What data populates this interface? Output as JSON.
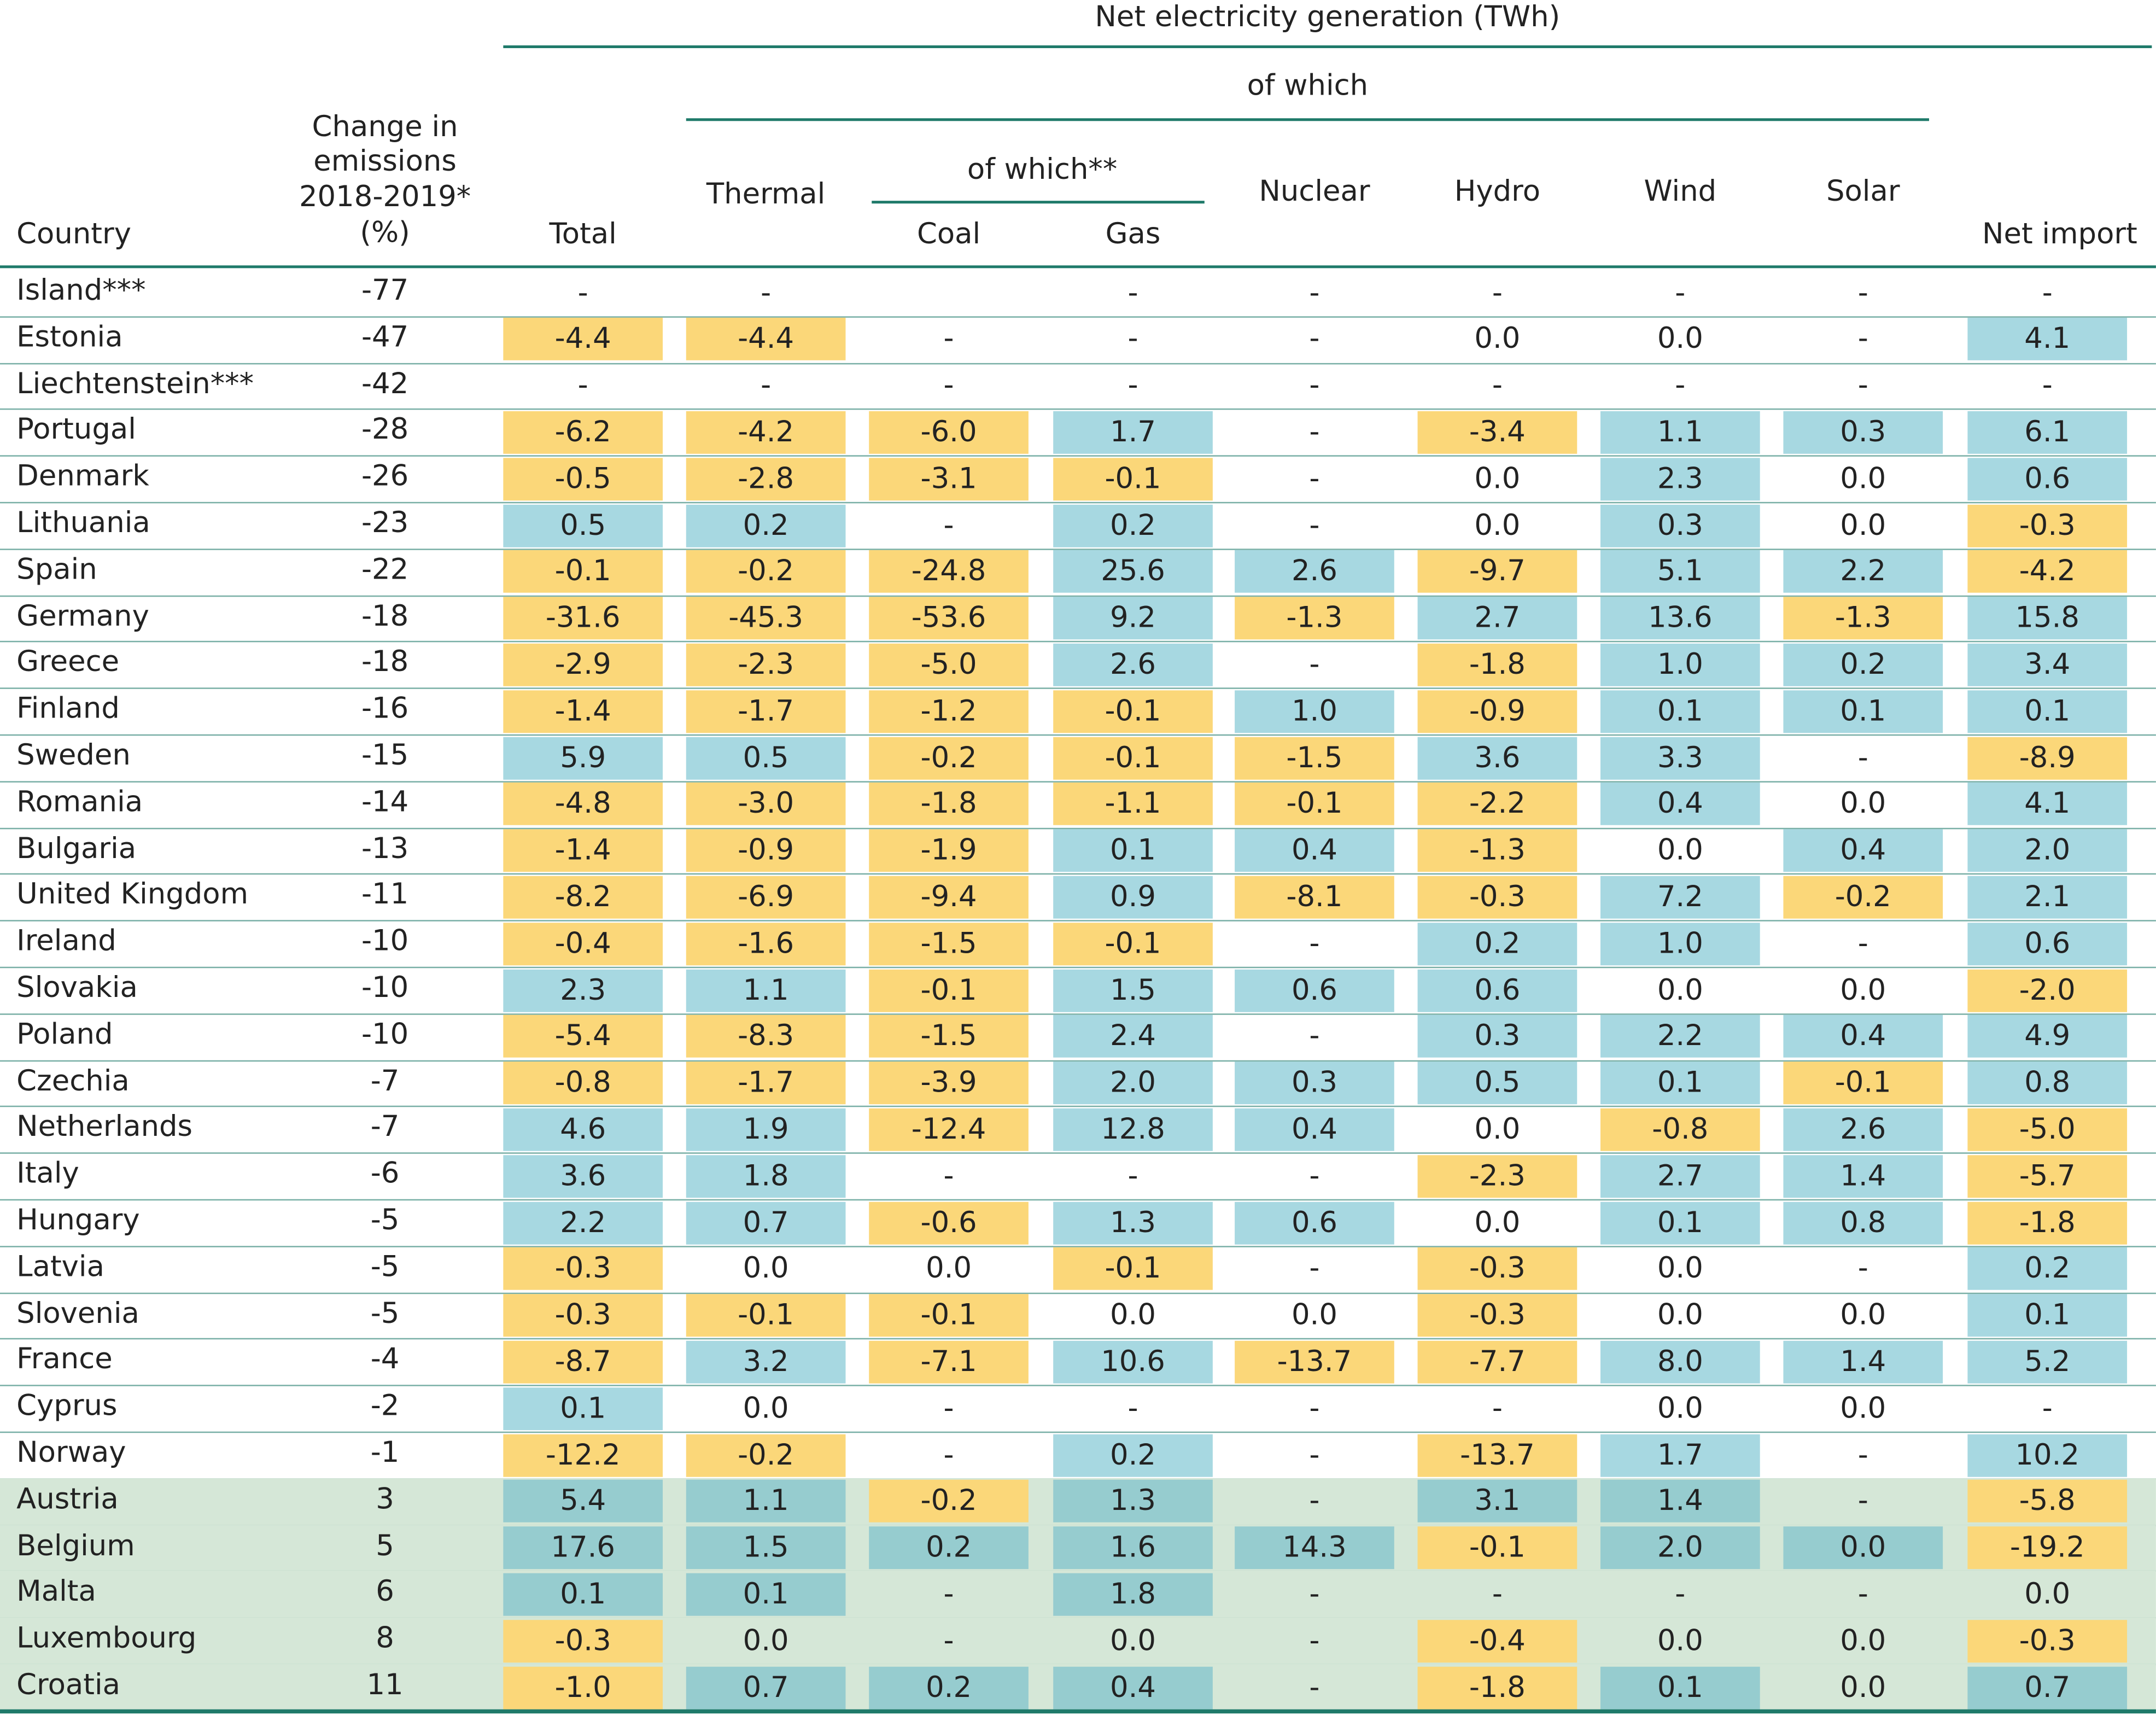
{
  "header": {
    "top": "Net electricity generation (TWh)",
    "of_which": "of which",
    "of_which_2": "of which**",
    "country": "Country",
    "change_line1": "Change in",
    "change_line2": "emissions",
    "change_line3": "2018-2019*",
    "change_line4": "(%)",
    "total": "Total",
    "thermal": "Thermal",
    "coal": "Coal",
    "gas": "Gas",
    "nuclear": "Nuclear",
    "hydro": "Hydro",
    "wind": "Wind",
    "solar": "Solar",
    "net_import": "Net import"
  },
  "colors": {
    "positive": "#a7d8e1",
    "negative": "#fbd779",
    "increase_row": "#d5e7d7",
    "positive_on_increase": "#96cccf",
    "rule": "#1f7a6a"
  },
  "chart_data": {
    "type": "table",
    "columns": [
      "Country",
      "Change in emissions 2018-2019* (%)",
      "Total",
      "Thermal",
      "Coal",
      "Gas",
      "Nuclear",
      "Hydro",
      "Wind",
      "Solar",
      "Net import"
    ],
    "rows": [
      {
        "country": "Island***",
        "change": "-77",
        "values": [
          "-",
          "-",
          "",
          "-",
          "-",
          "-",
          "-",
          "-",
          "-"
        ],
        "fill": [
          "",
          "",
          "",
          "",
          "",
          "",
          "",
          "",
          ""
        ],
        "increase": false
      },
      {
        "country": "Estonia",
        "change": "-47",
        "values": [
          "-4.4",
          "-4.4",
          "-",
          "-",
          "-",
          "0.0",
          "0.0",
          "-",
          "4.1"
        ],
        "fill": [
          "neg",
          "neg",
          "",
          "",
          "",
          "",
          "",
          "",
          "pos"
        ],
        "increase": false
      },
      {
        "country": "Liechtenstein***",
        "change": "-42",
        "values": [
          "-",
          "-",
          "-",
          "-",
          "-",
          "-",
          "-",
          "-",
          "-"
        ],
        "fill": [
          "",
          "",
          "",
          "",
          "",
          "",
          "",
          "",
          ""
        ],
        "increase": false
      },
      {
        "country": "Portugal",
        "change": "-28",
        "values": [
          "-6.2",
          "-4.2",
          "-6.0",
          "1.7",
          "-",
          "-3.4",
          "1.1",
          "0.3",
          "6.1"
        ],
        "fill": [
          "neg",
          "neg",
          "neg",
          "pos",
          "",
          "neg",
          "pos",
          "pos",
          "pos"
        ],
        "increase": false
      },
      {
        "country": "Denmark",
        "change": "-26",
        "values": [
          "-0.5",
          "-2.8",
          "-3.1",
          "-0.1",
          "-",
          "0.0",
          "2.3",
          "0.0",
          "0.6"
        ],
        "fill": [
          "neg",
          "neg",
          "neg",
          "neg",
          "",
          "",
          "pos",
          "",
          "pos"
        ],
        "increase": false
      },
      {
        "country": "Lithuania",
        "change": "-23",
        "values": [
          "0.5",
          "0.2",
          "-",
          "0.2",
          "-",
          "0.0",
          "0.3",
          "0.0",
          "-0.3"
        ],
        "fill": [
          "pos",
          "pos",
          "",
          "pos",
          "",
          "",
          "pos",
          "",
          "neg"
        ],
        "increase": false
      },
      {
        "country": "Spain",
        "change": "-22",
        "values": [
          "-0.1",
          "-0.2",
          "-24.8",
          "25.6",
          "2.6",
          "-9.7",
          "5.1",
          "2.2",
          "-4.2"
        ],
        "fill": [
          "neg",
          "neg",
          "neg",
          "pos",
          "pos",
          "neg",
          "pos",
          "pos",
          "neg"
        ],
        "increase": false
      },
      {
        "country": "Germany",
        "change": "-18",
        "values": [
          "-31.6",
          "-45.3",
          "-53.6",
          "9.2",
          "-1.3",
          "2.7",
          "13.6",
          "-1.3",
          "15.8"
        ],
        "fill": [
          "neg",
          "neg",
          "neg",
          "pos",
          "neg",
          "pos",
          "pos",
          "neg",
          "pos"
        ],
        "increase": false
      },
      {
        "country": "Greece",
        "change": "-18",
        "values": [
          "-2.9",
          "-2.3",
          "-5.0",
          "2.6",
          "-",
          "-1.8",
          "1.0",
          "0.2",
          "3.4"
        ],
        "fill": [
          "neg",
          "neg",
          "neg",
          "pos",
          "",
          "neg",
          "pos",
          "pos",
          "pos"
        ],
        "increase": false
      },
      {
        "country": "Finland",
        "change": "-16",
        "values": [
          "-1.4",
          "-1.7",
          "-1.2",
          "-0.1",
          "1.0",
          "-0.9",
          "0.1",
          "0.1",
          "0.1"
        ],
        "fill": [
          "neg",
          "neg",
          "neg",
          "neg",
          "pos",
          "neg",
          "pos",
          "pos",
          "pos"
        ],
        "increase": false
      },
      {
        "country": "Sweden",
        "change": "-15",
        "values": [
          "5.9",
          "0.5",
          "-0.2",
          "-0.1",
          "-1.5",
          "3.6",
          "3.3",
          "-",
          "-8.9"
        ],
        "fill": [
          "pos",
          "pos",
          "neg",
          "neg",
          "neg",
          "pos",
          "pos",
          "",
          "neg"
        ],
        "increase": false
      },
      {
        "country": "Romania",
        "change": "-14",
        "values": [
          "-4.8",
          "-3.0",
          "-1.8",
          "-1.1",
          "-0.1",
          "-2.2",
          "0.4",
          "0.0",
          "4.1"
        ],
        "fill": [
          "neg",
          "neg",
          "neg",
          "neg",
          "neg",
          "neg",
          "pos",
          "",
          "pos"
        ],
        "increase": false
      },
      {
        "country": "Bulgaria",
        "change": "-13",
        "values": [
          "-1.4",
          "-0.9",
          "-1.9",
          "0.1",
          "0.4",
          "-1.3",
          "0.0",
          "0.4",
          "2.0"
        ],
        "fill": [
          "neg",
          "neg",
          "neg",
          "pos",
          "pos",
          "neg",
          "",
          "pos",
          "pos"
        ],
        "increase": false
      },
      {
        "country": "United Kingdom",
        "change": "-11",
        "values": [
          "-8.2",
          "-6.9",
          "-9.4",
          "0.9",
          "-8.1",
          "-0.3",
          "7.2",
          "-0.2",
          "2.1"
        ],
        "fill": [
          "neg",
          "neg",
          "neg",
          "pos",
          "neg",
          "neg",
          "pos",
          "neg",
          "pos"
        ],
        "increase": false
      },
      {
        "country": "Ireland",
        "change": "-10",
        "values": [
          "-0.4",
          "-1.6",
          "-1.5",
          "-0.1",
          "-",
          "0.2",
          "1.0",
          "-",
          "0.6"
        ],
        "fill": [
          "neg",
          "neg",
          "neg",
          "neg",
          "",
          "pos",
          "pos",
          "",
          "pos"
        ],
        "increase": false
      },
      {
        "country": "Slovakia",
        "change": "-10",
        "values": [
          "2.3",
          "1.1",
          "-0.1",
          "1.5",
          "0.6",
          "0.6",
          "0.0",
          "0.0",
          "-2.0"
        ],
        "fill": [
          "pos",
          "pos",
          "neg",
          "pos",
          "pos",
          "pos",
          "",
          "",
          "neg"
        ],
        "increase": false
      },
      {
        "country": "Poland",
        "change": "-10",
        "values": [
          "-5.4",
          "-8.3",
          "-1.5",
          "2.4",
          "-",
          "0.3",
          "2.2",
          "0.4",
          "4.9"
        ],
        "fill": [
          "neg",
          "neg",
          "neg",
          "pos",
          "",
          "pos",
          "pos",
          "pos",
          "pos"
        ],
        "increase": false
      },
      {
        "country": "Czechia",
        "change": "-7",
        "values": [
          "-0.8",
          "-1.7",
          "-3.9",
          "2.0",
          "0.3",
          "0.5",
          "0.1",
          "-0.1",
          "0.8"
        ],
        "fill": [
          "neg",
          "neg",
          "neg",
          "pos",
          "pos",
          "pos",
          "pos",
          "neg",
          "pos"
        ],
        "increase": false
      },
      {
        "country": "Netherlands",
        "change": "-7",
        "values": [
          "4.6",
          "1.9",
          "-12.4",
          "12.8",
          "0.4",
          "0.0",
          "-0.8",
          "2.6",
          "-5.0"
        ],
        "fill": [
          "pos",
          "pos",
          "neg",
          "pos",
          "pos",
          "",
          "neg",
          "pos",
          "neg"
        ],
        "increase": false
      },
      {
        "country": "Italy",
        "change": "-6",
        "values": [
          "3.6",
          "1.8",
          "-",
          "-",
          "-",
          "-2.3",
          "2.7",
          "1.4",
          "-5.7"
        ],
        "fill": [
          "pos",
          "pos",
          "",
          "",
          "",
          "neg",
          "pos",
          "pos",
          "neg"
        ],
        "increase": false
      },
      {
        "country": "Hungary",
        "change": "-5",
        "values": [
          "2.2",
          "0.7",
          "-0.6",
          "1.3",
          "0.6",
          "0.0",
          "0.1",
          "0.8",
          "-1.8"
        ],
        "fill": [
          "pos",
          "pos",
          "neg",
          "pos",
          "pos",
          "",
          "pos",
          "pos",
          "neg"
        ],
        "increase": false
      },
      {
        "country": "Latvia",
        "change": "-5",
        "values": [
          "-0.3",
          "0.0",
          "0.0",
          "-0.1",
          "-",
          "-0.3",
          "0.0",
          "-",
          "0.2"
        ],
        "fill": [
          "neg",
          "",
          "",
          "neg",
          "",
          "neg",
          "",
          "",
          "pos"
        ],
        "increase": false
      },
      {
        "country": "Slovenia",
        "change": "-5",
        "values": [
          "-0.3",
          "-0.1",
          "-0.1",
          "0.0",
          "0.0",
          "-0.3",
          "0.0",
          "0.0",
          "0.1"
        ],
        "fill": [
          "neg",
          "neg",
          "neg",
          "",
          "",
          "neg",
          "",
          "",
          "pos"
        ],
        "increase": false
      },
      {
        "country": "France",
        "change": "-4",
        "values": [
          "-8.7",
          "3.2",
          "-7.1",
          "10.6",
          "-13.7",
          "-7.7",
          "8.0",
          "1.4",
          "5.2"
        ],
        "fill": [
          "neg",
          "pos",
          "neg",
          "pos",
          "neg",
          "neg",
          "pos",
          "pos",
          "pos"
        ],
        "increase": false
      },
      {
        "country": "Cyprus",
        "change": "-2",
        "values": [
          "0.1",
          "0.0",
          "-",
          "-",
          "-",
          "-",
          "0.0",
          "0.0",
          "-"
        ],
        "fill": [
          "pos",
          "",
          "",
          "",
          "",
          "",
          "",
          "",
          ""
        ],
        "increase": false
      },
      {
        "country": "Norway",
        "change": "-1",
        "values": [
          "-12.2",
          "-0.2",
          "-",
          "0.2",
          "-",
          "-13.7",
          "1.7",
          "-",
          "10.2"
        ],
        "fill": [
          "neg",
          "neg",
          "",
          "pos",
          "",
          "neg",
          "pos",
          "",
          "pos"
        ],
        "increase": false
      },
      {
        "country": "Austria",
        "change": "3",
        "values": [
          "5.4",
          "1.1",
          "-0.2",
          "1.3",
          "-",
          "3.1",
          "1.4",
          "-",
          "-5.8"
        ],
        "fill": [
          "pos",
          "pos",
          "neg",
          "pos",
          "",
          "pos",
          "pos",
          "",
          "neg"
        ],
        "increase": true
      },
      {
        "country": "Belgium",
        "change": "5",
        "values": [
          "17.6",
          "1.5",
          "0.2",
          "1.6",
          "14.3",
          "-0.1",
          "2.0",
          "0.0",
          "-19.2"
        ],
        "fill": [
          "pos",
          "pos",
          "pos",
          "pos",
          "pos",
          "neg",
          "pos",
          "pos",
          "neg"
        ],
        "increase": true
      },
      {
        "country": "Malta",
        "change": "6",
        "values": [
          "0.1",
          "0.1",
          "-",
          "1.8",
          "-",
          "-",
          "-",
          "-",
          "0.0"
        ],
        "fill": [
          "pos",
          "pos",
          "",
          "pos",
          "",
          "",
          "",
          "",
          ""
        ],
        "increase": true
      },
      {
        "country": "Luxembourg",
        "change": "8",
        "values": [
          "-0.3",
          "0.0",
          "-",
          "0.0",
          "-",
          "-0.4",
          "0.0",
          "0.0",
          "-0.3"
        ],
        "fill": [
          "neg",
          "",
          "",
          "",
          "",
          "neg",
          "",
          "",
          "neg"
        ],
        "increase": true
      },
      {
        "country": "Croatia",
        "change": "11",
        "values": [
          "-1.0",
          "0.7",
          "0.2",
          "0.4",
          "-",
          "-1.8",
          "0.1",
          "0.0",
          "0.7"
        ],
        "fill": [
          "neg",
          "pos",
          "pos",
          "pos",
          "",
          "neg",
          "pos",
          "",
          "pos"
        ],
        "increase": true
      }
    ]
  }
}
